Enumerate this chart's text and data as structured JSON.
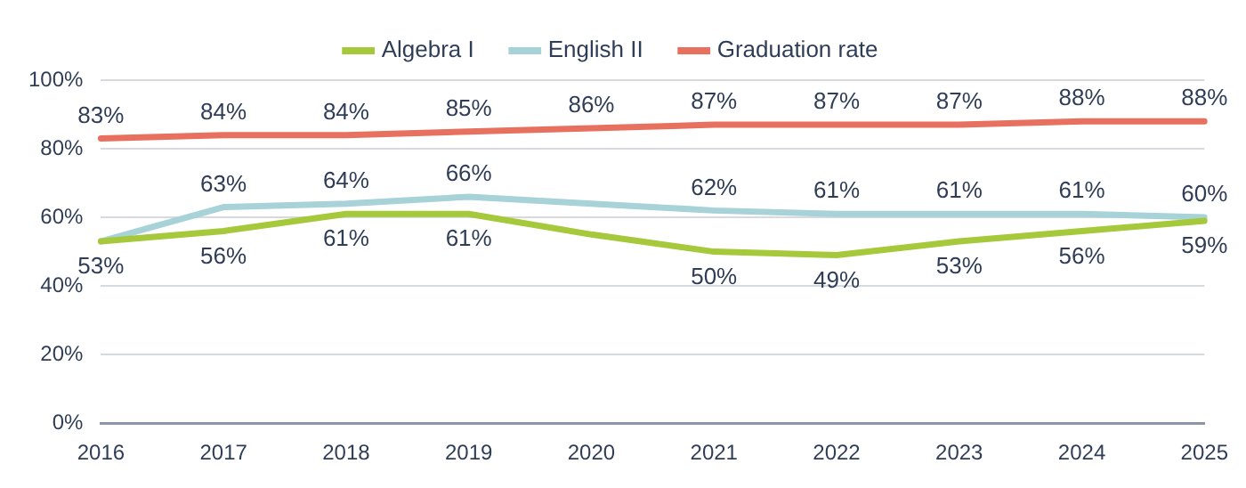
{
  "chart_data": {
    "type": "line",
    "categories": [
      "2016",
      "2017",
      "2018",
      "2019",
      "2020",
      "2021",
      "2022",
      "2023",
      "2024",
      "2025"
    ],
    "series": [
      {
        "name": "Algebra I",
        "color": "#a5c93b",
        "values": [
          53,
          56,
          61,
          61,
          55,
          50,
          49,
          53,
          56,
          59
        ],
        "value_labels": [
          "53%",
          "56%",
          "61%",
          "61%",
          null,
          "50%",
          "49%",
          "53%",
          "56%",
          "59%"
        ]
      },
      {
        "name": "English II",
        "color": "#a6d2d8",
        "values": [
          53,
          63,
          64,
          66,
          64,
          62,
          61,
          61,
          61,
          60
        ],
        "value_labels": [
          null,
          "63%",
          "64%",
          "66%",
          null,
          "62%",
          "61%",
          "61%",
          "61%",
          "60%"
        ]
      },
      {
        "name": "Graduation rate",
        "color": "#e8705f",
        "values": [
          83,
          84,
          84,
          85,
          86,
          87,
          87,
          87,
          88,
          88
        ],
        "value_labels": [
          "83%",
          "84%",
          "84%",
          "85%",
          "86%",
          "87%",
          "87%",
          "87%",
          "88%",
          "88%"
        ]
      }
    ],
    "ylim": [
      0,
      100
    ],
    "yticks": [
      {
        "value": 0,
        "label": "0%"
      },
      {
        "value": 20,
        "label": "20%"
      },
      {
        "value": 40,
        "label": "40%"
      },
      {
        "value": 60,
        "label": "60%"
      },
      {
        "value": 80,
        "label": "80%"
      },
      {
        "value": 100,
        "label": "100%"
      }
    ],
    "grid": "y",
    "legend": "top",
    "marker": "none",
    "line_style": "solid"
  }
}
